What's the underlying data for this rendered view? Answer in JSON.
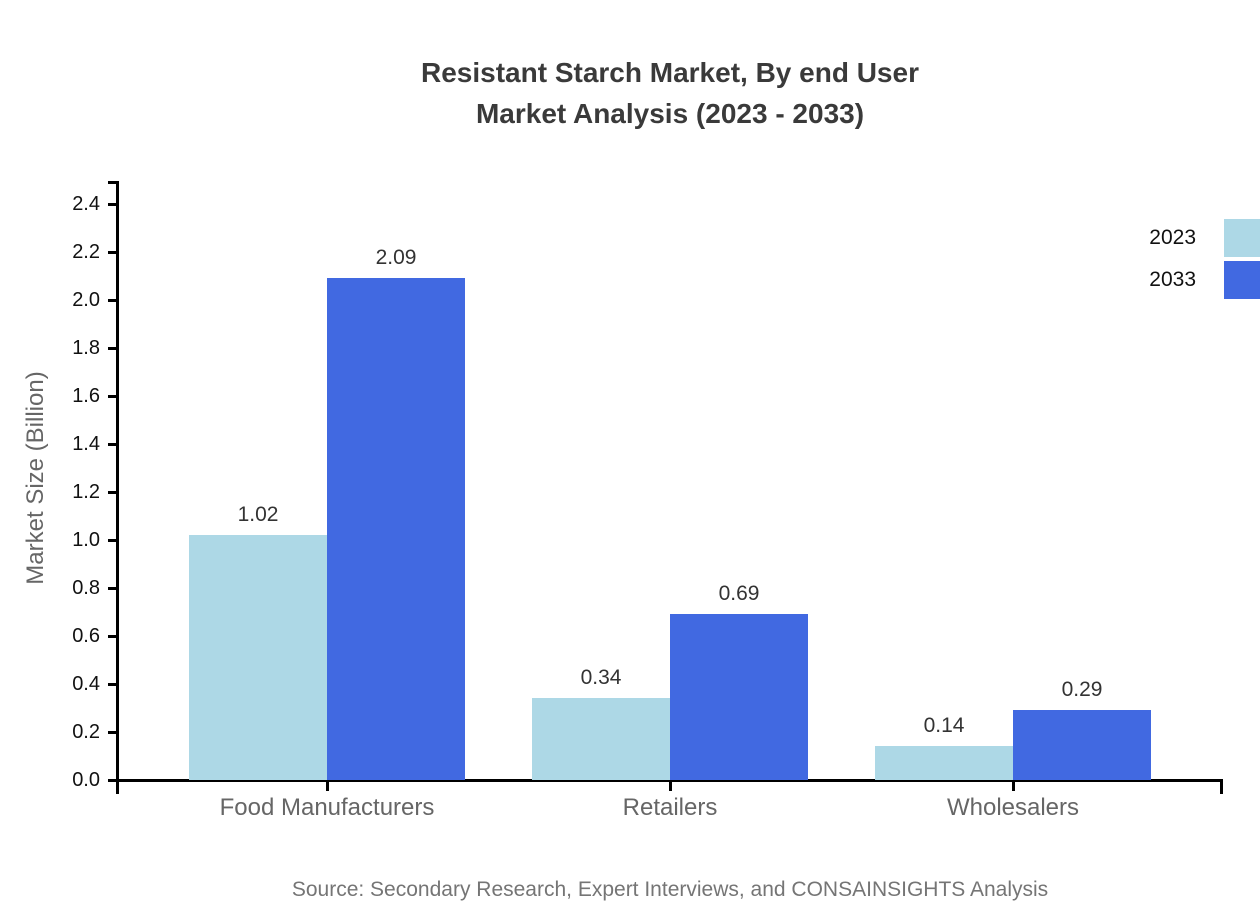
{
  "chart_data": {
    "type": "bar",
    "title": "Resistant Starch Market, By end User Market Analysis (2023 - 2033)",
    "title_line1": "Resistant Starch Market, By end User",
    "title_line2": "Market Analysis (2023 - 2033)",
    "categories": [
      "Food Manufacturers",
      "Retailers",
      "Wholesalers"
    ],
    "series": [
      {
        "name": "2023",
        "color": "#ADD8E6",
        "values": [
          1.02,
          0.34,
          0.14
        ]
      },
      {
        "name": "2033",
        "color": "#4169E1",
        "values": [
          2.09,
          0.69,
          0.29
        ]
      }
    ],
    "value_labels": [
      [
        "1.02",
        "0.34",
        "0.14"
      ],
      [
        "2.09",
        "0.69",
        "0.29"
      ]
    ],
    "ylabel": "Market Size (Billion)",
    "xlabel": "",
    "ylim": [
      0.0,
      2.5
    ],
    "ytick_step": 0.2,
    "yticks": [
      "0.0",
      "0.2",
      "0.4",
      "0.6",
      "0.8",
      "1.0",
      "1.2",
      "1.4",
      "1.6",
      "1.8",
      "2.0",
      "2.2",
      "2.4"
    ],
    "grid": "off",
    "legend_position": "top-right",
    "axis_color": "#000000",
    "title_color": "#3a3a3a",
    "tick_label_color": "#111111",
    "category_label_color": "#666666",
    "source": "Source: Secondary Research, Expert Interviews, and CONSAINSIGHTS Analysis"
  }
}
